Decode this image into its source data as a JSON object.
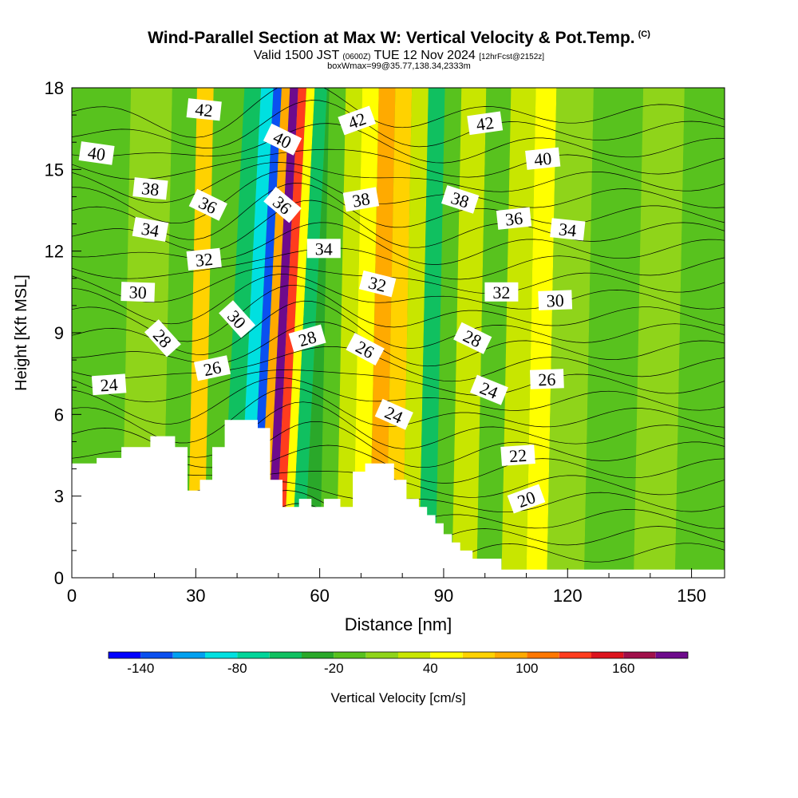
{
  "chart_data": {
    "type": "heatmap",
    "title": "Wind-Parallel Section at Max W: Vertical Velocity & Pot.Temp.",
    "title_mark": "(C)",
    "subtitle_a": "Valid 1500 JST ",
    "subtitle_b": "(0600Z)",
    "subtitle_c": " TUE 12 Nov 2024 ",
    "subtitle_d": "[12hrFcst@2152z]",
    "subtitle2": "boxWmax=99@35.77,138.34,2333m",
    "xlabel": "Distance [nm]",
    "ylabel": "Height [Kft MSL]",
    "xlim": [
      0,
      158
    ],
    "ylim": [
      0,
      18
    ],
    "x_ticks": [
      "0",
      "30",
      "60",
      "90",
      "120",
      "150"
    ],
    "x_tick_values": [
      0,
      30,
      60,
      90,
      120,
      150
    ],
    "y_ticks": [
      "0",
      "3",
      "6",
      "9",
      "12",
      "15",
      "18"
    ],
    "y_tick_values": [
      0,
      3,
      6,
      9,
      12,
      15,
      18
    ],
    "colorbar": {
      "label": "Vertical Velocity [cm/s]",
      "tick_labels": [
        "-140",
        "-80",
        "-20",
        "40",
        "100",
        "160"
      ],
      "tick_values": [
        -140,
        -80,
        -20,
        40,
        100,
        160
      ],
      "levels": [
        -160,
        -140,
        -120,
        -100,
        -80,
        -60,
        -40,
        -20,
        0,
        20,
        40,
        60,
        80,
        100,
        120,
        140,
        160,
        180,
        200
      ],
      "colors": [
        "#0000ff",
        "#0a50f0",
        "#00a0f0",
        "#00e0e0",
        "#00d59a",
        "#10c060",
        "#2aa82a",
        "#58c21e",
        "#8fd41a",
        "#c8e600",
        "#ffff00",
        "#ffd200",
        "#ffaa00",
        "#ff7700",
        "#ff3c1e",
        "#dc141e",
        "#a0104a",
        "#6e0a8c"
      ]
    },
    "vertical_velocity_bands": [
      {
        "x_start": 0,
        "x_end": 12,
        "w": -20
      },
      {
        "x_start": 12,
        "x_end": 22,
        "w": 10
      },
      {
        "x_start": 22,
        "x_end": 28,
        "w": -10
      },
      {
        "x_start": 28,
        "x_end": 32,
        "w": 60
      },
      {
        "x_start": 32,
        "x_end": 36,
        "w": -10
      },
      {
        "x_start": 36,
        "x_end": 40,
        "w": -60
      },
      {
        "x_start": 40,
        "x_end": 43,
        "w": -100
      },
      {
        "x_start": 43,
        "x_end": 45,
        "w": -140
      },
      {
        "x_start": 45,
        "x_end": 47,
        "w": 80
      },
      {
        "x_start": 47,
        "x_end": 49,
        "w": 190
      },
      {
        "x_start": 49,
        "x_end": 51,
        "w": 130
      },
      {
        "x_start": 51,
        "x_end": 53,
        "w": 50
      },
      {
        "x_start": 53,
        "x_end": 56,
        "w": -60
      },
      {
        "x_start": 56,
        "x_end": 60,
        "w": -30
      },
      {
        "x_start": 60,
        "x_end": 64,
        "w": -10
      },
      {
        "x_start": 64,
        "x_end": 68,
        "w": 20
      },
      {
        "x_start": 68,
        "x_end": 72,
        "w": 40
      },
      {
        "x_start": 72,
        "x_end": 76,
        "w": 80
      },
      {
        "x_start": 76,
        "x_end": 80,
        "w": 60
      },
      {
        "x_start": 80,
        "x_end": 84,
        "w": 20
      },
      {
        "x_start": 84,
        "x_end": 88,
        "w": -60
      },
      {
        "x_start": 88,
        "x_end": 92,
        "w": -20
      },
      {
        "x_start": 92,
        "x_end": 98,
        "w": 20
      },
      {
        "x_start": 98,
        "x_end": 104,
        "w": -10
      },
      {
        "x_start": 104,
        "x_end": 110,
        "w": 30
      },
      {
        "x_start": 110,
        "x_end": 115,
        "w": 50
      },
      {
        "x_start": 115,
        "x_end": 124,
        "w": 10
      },
      {
        "x_start": 124,
        "x_end": 136,
        "w": -20
      },
      {
        "x_start": 136,
        "x_end": 146,
        "w": 10
      },
      {
        "x_start": 146,
        "x_end": 158,
        "w": -10
      }
    ],
    "terrain_profile": [
      {
        "x": 0,
        "h": 4.2
      },
      {
        "x": 6,
        "h": 4.2
      },
      {
        "x": 6,
        "h": 4.4
      },
      {
        "x": 12,
        "h": 4.4
      },
      {
        "x": 12,
        "h": 4.8
      },
      {
        "x": 19,
        "h": 4.8
      },
      {
        "x": 19,
        "h": 5.2
      },
      {
        "x": 25,
        "h": 5.2
      },
      {
        "x": 25,
        "h": 4.8
      },
      {
        "x": 28,
        "h": 4.8
      },
      {
        "x": 28,
        "h": 3.2
      },
      {
        "x": 31,
        "h": 3.2
      },
      {
        "x": 31,
        "h": 3.6
      },
      {
        "x": 34,
        "h": 3.6
      },
      {
        "x": 34,
        "h": 4.8
      },
      {
        "x": 37,
        "h": 4.8
      },
      {
        "x": 37,
        "h": 5.8
      },
      {
        "x": 45,
        "h": 5.8
      },
      {
        "x": 45,
        "h": 5.5
      },
      {
        "x": 48,
        "h": 5.5
      },
      {
        "x": 48,
        "h": 3.6
      },
      {
        "x": 51,
        "h": 3.6
      },
      {
        "x": 51,
        "h": 2.6
      },
      {
        "x": 55,
        "h": 2.6
      },
      {
        "x": 55,
        "h": 2.9
      },
      {
        "x": 58,
        "h": 2.9
      },
      {
        "x": 58,
        "h": 2.6
      },
      {
        "x": 61,
        "h": 2.6
      },
      {
        "x": 61,
        "h": 2.9
      },
      {
        "x": 65,
        "h": 2.9
      },
      {
        "x": 65,
        "h": 2.6
      },
      {
        "x": 68,
        "h": 2.6
      },
      {
        "x": 68,
        "h": 3.9
      },
      {
        "x": 71,
        "h": 3.9
      },
      {
        "x": 71,
        "h": 4.2
      },
      {
        "x": 78,
        "h": 4.2
      },
      {
        "x": 78,
        "h": 3.6
      },
      {
        "x": 81,
        "h": 3.6
      },
      {
        "x": 81,
        "h": 2.9
      },
      {
        "x": 84,
        "h": 2.9
      },
      {
        "x": 84,
        "h": 2.6
      },
      {
        "x": 86,
        "h": 2.6
      },
      {
        "x": 86,
        "h": 2.3
      },
      {
        "x": 88,
        "h": 2.3
      },
      {
        "x": 88,
        "h": 2.0
      },
      {
        "x": 90,
        "h": 2.0
      },
      {
        "x": 90,
        "h": 1.6
      },
      {
        "x": 92,
        "h": 1.6
      },
      {
        "x": 92,
        "h": 1.3
      },
      {
        "x": 94,
        "h": 1.3
      },
      {
        "x": 94,
        "h": 1.0
      },
      {
        "x": 97,
        "h": 1.0
      },
      {
        "x": 97,
        "h": 0.7
      },
      {
        "x": 104,
        "h": 0.7
      },
      {
        "x": 104,
        "h": 0.3
      },
      {
        "x": 158,
        "h": 0.3
      }
    ],
    "theta_contours": [
      {
        "label": "20",
        "label_x": 110,
        "label_y": 2.9,
        "angle": -20,
        "lx0": 100,
        "lx1": 124
      },
      {
        "label": "22",
        "label_x": 108,
        "label_y": 4.5,
        "angle": -4,
        "lx0": 100,
        "lx1": 124
      },
      {
        "label": "24",
        "label_x": 9,
        "label_y": 7.1,
        "angle": -4,
        "lx0": 0,
        "lx1": 24
      },
      {
        "label": "24",
        "label_x": 78,
        "label_y": 6.0,
        "angle": 24,
        "lx0": 68,
        "lx1": 88
      },
      {
        "label": "24",
        "label_x": 101,
        "label_y": 6.9,
        "angle": 22,
        "lx0": 92,
        "lx1": 112
      },
      {
        "label": "26",
        "label_x": 34,
        "label_y": 7.7,
        "angle": -12,
        "lx0": 26,
        "lx1": 42
      },
      {
        "label": "26",
        "label_x": 71,
        "label_y": 8.4,
        "angle": 28,
        "lx0": 62,
        "lx1": 80
      },
      {
        "label": "26",
        "label_x": 115,
        "label_y": 7.3,
        "angle": -2,
        "lx0": 104,
        "lx1": 128
      },
      {
        "label": "28",
        "label_x": 22,
        "label_y": 8.8,
        "angle": 48,
        "lx0": 12,
        "lx1": 30
      },
      {
        "label": "28",
        "label_x": 57,
        "label_y": 8.8,
        "angle": -16,
        "lx0": 50,
        "lx1": 66
      },
      {
        "label": "28",
        "label_x": 97,
        "label_y": 8.8,
        "angle": 26,
        "lx0": 88,
        "lx1": 110
      },
      {
        "label": "30",
        "label_x": 16,
        "label_y": 10.5,
        "angle": 2,
        "lx0": 4,
        "lx1": 26
      },
      {
        "label": "30",
        "label_x": 40,
        "label_y": 9.5,
        "angle": 48,
        "lx0": 32,
        "lx1": 46
      },
      {
        "label": "30",
        "label_x": 117,
        "label_y": 10.2,
        "angle": -2,
        "lx0": 106,
        "lx1": 132
      },
      {
        "label": "32",
        "label_x": 32,
        "label_y": 11.7,
        "angle": -6,
        "lx0": 24,
        "lx1": 42
      },
      {
        "label": "32",
        "label_x": 74,
        "label_y": 10.8,
        "angle": 14,
        "lx0": 64,
        "lx1": 84
      },
      {
        "label": "32",
        "label_x": 104,
        "label_y": 10.5,
        "angle": 0,
        "lx0": 94,
        "lx1": 114
      },
      {
        "label": "34",
        "label_x": 19,
        "label_y": 12.8,
        "angle": 10,
        "lx0": 6,
        "lx1": 30
      },
      {
        "label": "34",
        "label_x": 61,
        "label_y": 12.1,
        "angle": 0,
        "lx0": 54,
        "lx1": 70
      },
      {
        "label": "34",
        "label_x": 120,
        "label_y": 12.8,
        "angle": 6,
        "lx0": 110,
        "lx1": 134
      },
      {
        "label": "36",
        "label_x": 33,
        "label_y": 13.7,
        "angle": 26,
        "lx0": 26,
        "lx1": 42
      },
      {
        "label": "36",
        "label_x": 51,
        "label_y": 13.7,
        "angle": 40,
        "lx0": 44,
        "lx1": 58
      },
      {
        "label": "36",
        "label_x": 107,
        "label_y": 13.2,
        "angle": -6,
        "lx0": 98,
        "lx1": 118
      },
      {
        "label": "38",
        "label_x": 19,
        "label_y": 14.3,
        "angle": 6,
        "lx0": 8,
        "lx1": 30
      },
      {
        "label": "38",
        "label_x": 70,
        "label_y": 13.9,
        "angle": -10,
        "lx0": 60,
        "lx1": 80
      },
      {
        "label": "38",
        "label_x": 94,
        "label_y": 13.9,
        "angle": 18,
        "lx0": 84,
        "lx1": 104
      },
      {
        "label": "40",
        "label_x": 6,
        "label_y": 15.6,
        "angle": 8,
        "lx0": 0,
        "lx1": 16
      },
      {
        "label": "40",
        "label_x": 51,
        "label_y": 16.1,
        "angle": 26,
        "lx0": 44,
        "lx1": 60
      },
      {
        "label": "40",
        "label_x": 114,
        "label_y": 15.4,
        "angle": -6,
        "lx0": 104,
        "lx1": 126
      },
      {
        "label": "42",
        "label_x": 32,
        "label_y": 17.2,
        "angle": 6,
        "lx0": 24,
        "lx1": 40
      },
      {
        "label": "42",
        "label_x": 69,
        "label_y": 16.8,
        "angle": -20,
        "lx0": 60,
        "lx1": 80
      },
      {
        "label": "42",
        "label_x": 100,
        "label_y": 16.7,
        "angle": -8,
        "lx0": 90,
        "lx1": 110
      }
    ]
  }
}
